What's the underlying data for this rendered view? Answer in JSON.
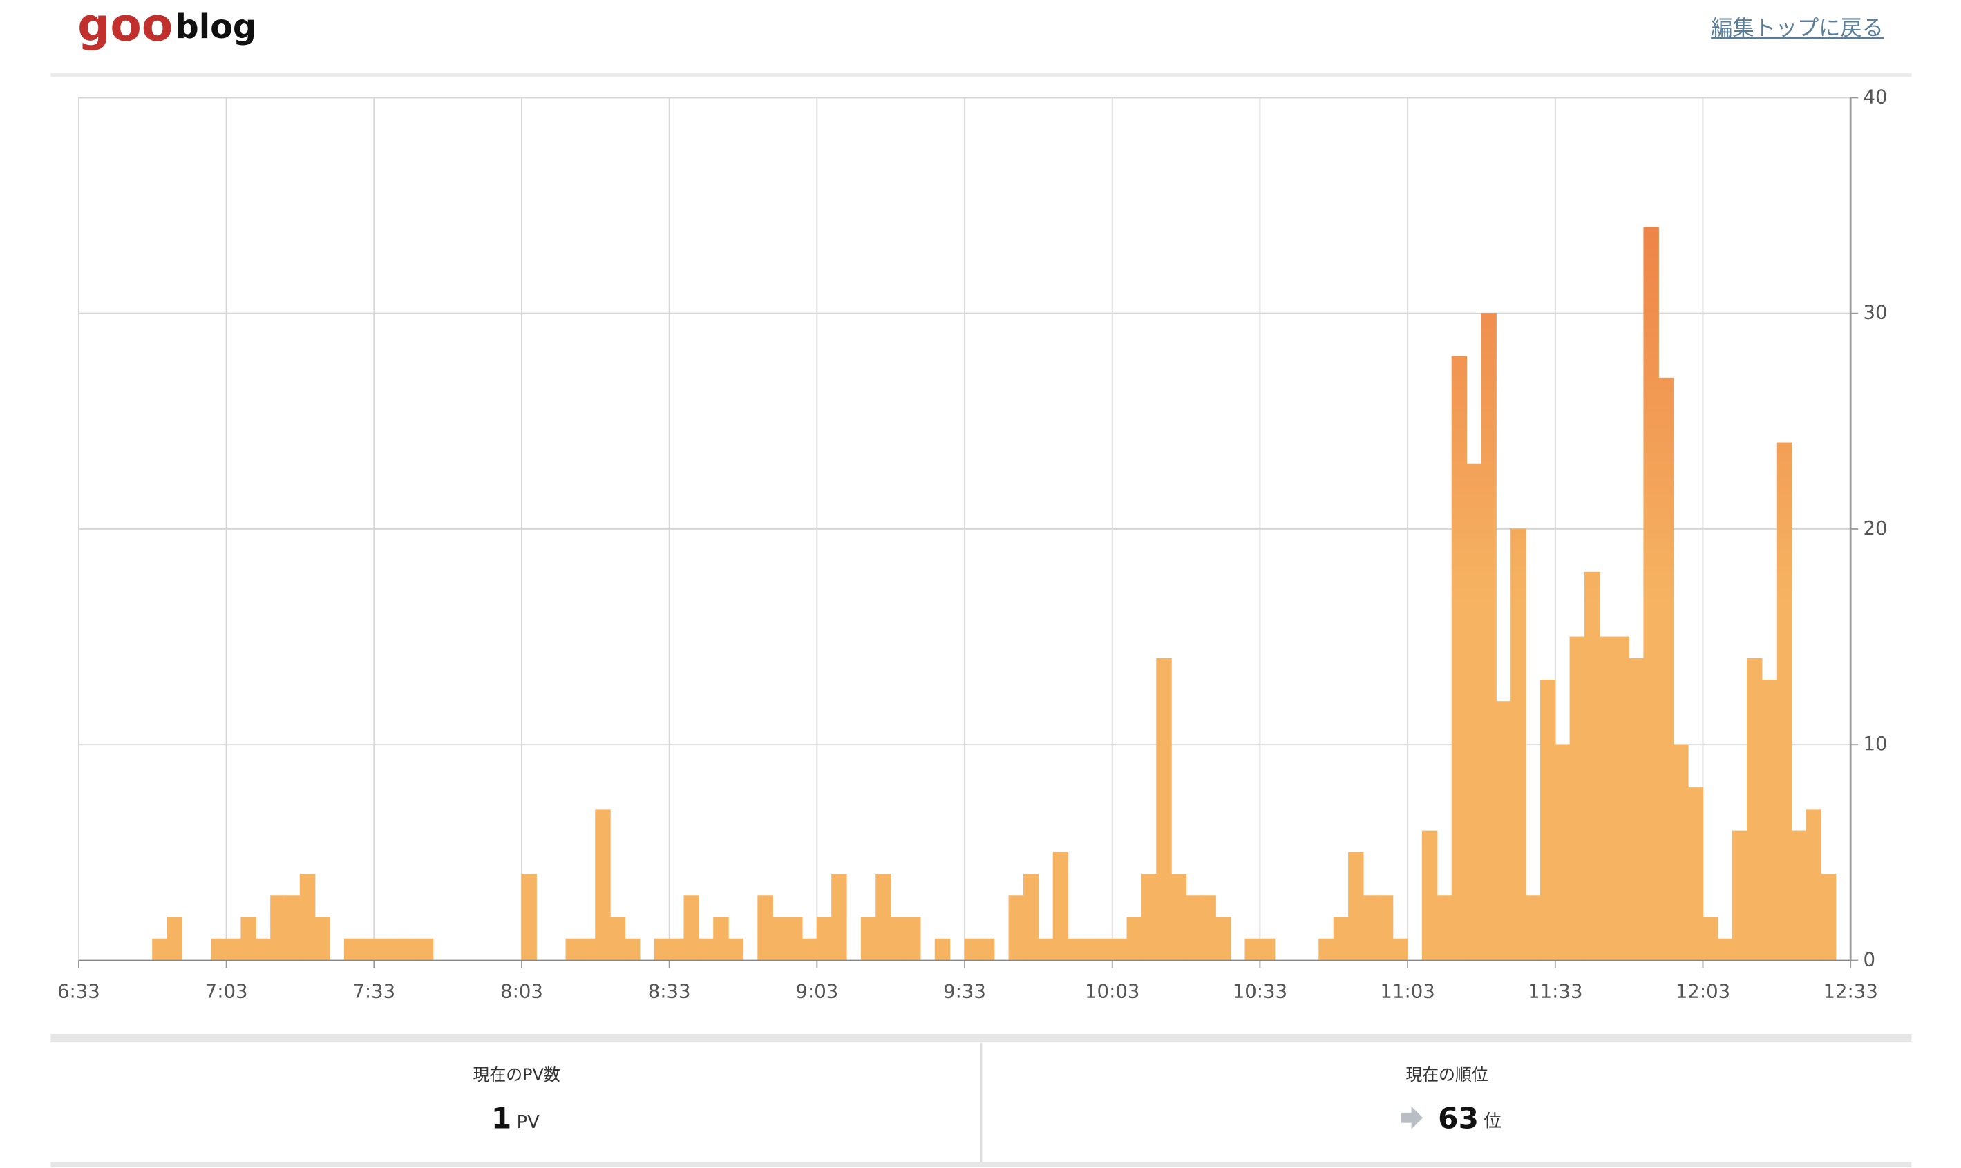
{
  "header": {
    "logo_goo": "goo",
    "logo_blog": "blog",
    "link": "編集トップに戻る"
  },
  "chart_data": {
    "type": "bar",
    "x": [
      393,
      396,
      399,
      402,
      405,
      408,
      411,
      414,
      417,
      420,
      423,
      426,
      429,
      432,
      435,
      438,
      441,
      444,
      447,
      450,
      453,
      456,
      459,
      462,
      465,
      468,
      471,
      474,
      477,
      480,
      483,
      486,
      489,
      492,
      495,
      498,
      501,
      504,
      507,
      510,
      513,
      516,
      519,
      522,
      525,
      528,
      531,
      534,
      537,
      540,
      543,
      546,
      549,
      552,
      555,
      558,
      561,
      564,
      567,
      570,
      573,
      576,
      579,
      582,
      585,
      588,
      591,
      594,
      597,
      600,
      603,
      606,
      609,
      612,
      615,
      618,
      621,
      624,
      627,
      630,
      633,
      636,
      639,
      642,
      645,
      648,
      651,
      654,
      657,
      660,
      663,
      666,
      669,
      672,
      675,
      678,
      681,
      684,
      687,
      690,
      693,
      696,
      699,
      702,
      705,
      708,
      711,
      714,
      717,
      720,
      723,
      726,
      729,
      732,
      735,
      738,
      741,
      744,
      747,
      750
    ],
    "values": [
      0,
      0,
      0,
      0,
      0,
      1,
      2,
      0,
      0,
      1,
      1,
      2,
      1,
      3,
      3,
      4,
      2,
      0,
      1,
      1,
      1,
      1,
      1,
      1,
      0,
      0,
      0,
      0,
      0,
      0,
      4,
      0,
      0,
      1,
      1,
      7,
      2,
      1,
      0,
      1,
      1,
      3,
      1,
      2,
      1,
      0,
      3,
      2,
      2,
      1,
      2,
      4,
      0,
      2,
      4,
      2,
      2,
      0,
      1,
      0,
      1,
      1,
      0,
      3,
      4,
      1,
      5,
      1,
      1,
      1,
      1,
      2,
      4,
      14,
      4,
      3,
      3,
      2,
      0,
      1,
      1,
      0,
      0,
      0,
      1,
      2,
      5,
      3,
      3,
      1,
      0,
      6,
      3,
      28,
      23,
      30,
      12,
      20,
      3,
      13,
      10,
      15,
      18,
      15,
      15,
      14,
      34,
      27,
      10,
      8,
      2,
      1,
      6,
      14,
      13,
      24,
      6,
      7,
      4,
      0
    ],
    "xlim": [
      393,
      753
    ],
    "xticks": [
      {
        "value": 393,
        "label": "6:33"
      },
      {
        "value": 423,
        "label": "7:03"
      },
      {
        "value": 453,
        "label": "7:33"
      },
      {
        "value": 483,
        "label": "8:03"
      },
      {
        "value": 513,
        "label": "8:33"
      },
      {
        "value": 543,
        "label": "9:03"
      },
      {
        "value": 573,
        "label": "9:33"
      },
      {
        "value": 603,
        "label": "10:03"
      },
      {
        "value": 633,
        "label": "10:33"
      },
      {
        "value": 663,
        "label": "11:03"
      },
      {
        "value": 693,
        "label": "11:33"
      },
      {
        "value": 723,
        "label": "12:03"
      },
      {
        "value": 753,
        "label": "12:33"
      }
    ],
    "ylim": [
      0,
      40
    ],
    "yticks": [
      0,
      10,
      20,
      30,
      40
    ],
    "grid": true,
    "color": "#f6b462",
    "top_color": "#ee8448"
  },
  "stats": {
    "pv": {
      "label": "現在のPV数",
      "value": 1,
      "unit": "PV"
    },
    "rank": {
      "label": "現在の順位",
      "value": 63,
      "unit": "位"
    }
  }
}
